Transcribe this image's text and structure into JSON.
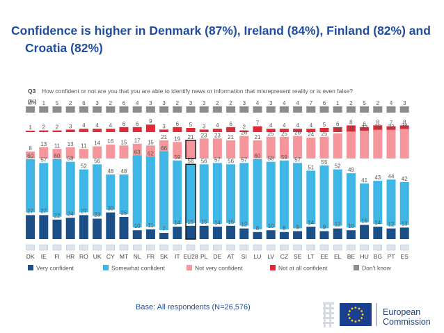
{
  "slide": {
    "title": "Confidence is higher in Denmark (87%), Ireland (84%), Finland (82%) and Croatia (82%)",
    "base_note": "Base: All respondents (N=26,576)",
    "logo": {
      "line1": "European",
      "line2": "Commission"
    }
  },
  "chart_data": {
    "type": "bar",
    "stacked": true,
    "percent": true,
    "question_id": "Q3",
    "question": "How confident or not are you that you are able to identify news or information that misrepresent reality or is even false?",
    "unit": "(%)",
    "categories": [
      "DK",
      "IE",
      "FI",
      "HR",
      "RO",
      "UK",
      "CY",
      "MT",
      "NL",
      "FR",
      "SK",
      "IT",
      "EU28",
      "PL",
      "DE",
      "AT",
      "SI",
      "LU",
      "LV",
      "CZ",
      "SE",
      "LT",
      "EE",
      "EL",
      "BE",
      "HU",
      "BG",
      "PT",
      "ES"
    ],
    "highlight_category": "EU28",
    "series": [
      {
        "name": "Very confident",
        "color": "#1a4f88",
        "values": [
          27,
          27,
          22,
          24,
          27,
          23,
          30,
          25,
          10,
          11,
          7,
          14,
          15,
          15,
          14,
          15,
          12,
          8,
          10,
          8,
          9,
          14,
          9,
          12,
          10,
          16,
          14,
          12,
          13
        ]
      },
      {
        "name": "Somewhat confident",
        "color": "#3fb7e6",
        "values": [
          60,
          57,
          60,
          58,
          52,
          56,
          48,
          48,
          63,
          62,
          66,
          59,
          56,
          56,
          57,
          56,
          57,
          60,
          58,
          59,
          57,
          51,
          55,
          52,
          49,
          41,
          43,
          44,
          42
        ]
      },
      {
        "name": "Not very confident",
        "color": "#f5969c",
        "values": [
          8,
          13,
          11,
          13,
          11,
          14,
          16,
          15,
          17,
          15,
          21,
          19,
          21,
          23,
          23,
          21,
          26,
          21,
          25,
          25,
          26,
          24,
          25,
          29,
          31,
          32,
          33,
          33,
          34
        ]
      },
      {
        "name": "Not at all confident",
        "color": "#df2a3a",
        "values": [
          1,
          2,
          2,
          3,
          4,
          4,
          4,
          6,
          6,
          9,
          3,
          6,
          5,
          3,
          4,
          6,
          2,
          7,
          4,
          4,
          4,
          4,
          5,
          6,
          8,
          6,
          8,
          7,
          8
        ]
      },
      {
        "name": "Don't know",
        "color": "#8c8c8c",
        "values": [
          4,
          1,
          5,
          2,
          6,
          3,
          2,
          6,
          4,
          3,
          3,
          2,
          3,
          3,
          2,
          2,
          3,
          4,
          3,
          4,
          4,
          7,
          6,
          1,
          2,
          5,
          2,
          4,
          3
        ]
      }
    ],
    "legend_position": "bottom",
    "ylim": [
      0,
      100
    ],
    "grid": false
  }
}
